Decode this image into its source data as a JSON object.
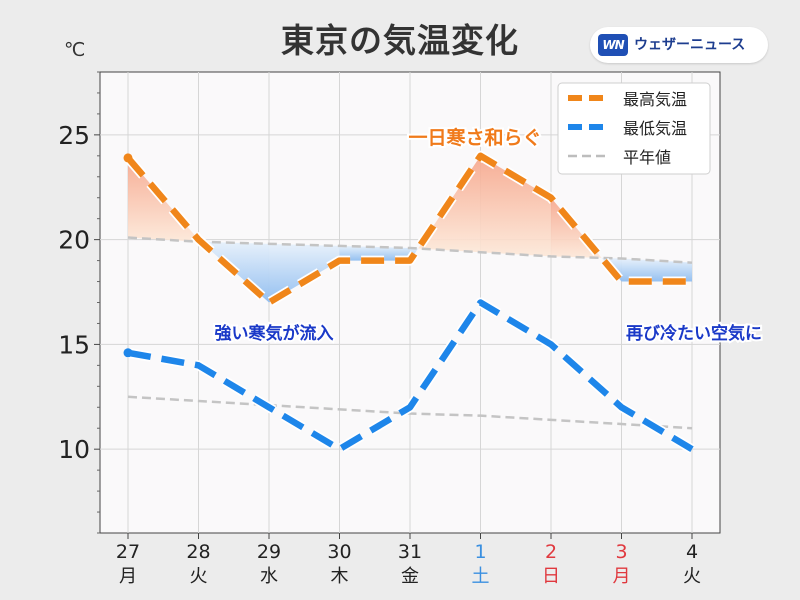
{
  "title": "東京の気温変化",
  "logo": {
    "mark": "WN",
    "text": "ウェザーニュース"
  },
  "colors": {
    "high": "#f0861a",
    "low": "#1e86ea",
    "normal": "#c4c4c4",
    "grid": "#d6d6d6",
    "plot_bg": "#faf9fa",
    "saturday": "#3a8fe0",
    "holiday": "#e0383e",
    "annotation_orange": "#f07a1a",
    "annotation_blue": "#1a39c8"
  },
  "chart_data": {
    "type": "line",
    "y_unit": "℃",
    "ylim": [
      6,
      28
    ],
    "yticks": [
      10,
      15,
      20,
      25
    ],
    "grid": true,
    "legend_position": "top-right",
    "categories": [
      {
        "day": "27",
        "weekday": "月",
        "color": "normal"
      },
      {
        "day": "28",
        "weekday": "火",
        "color": "normal"
      },
      {
        "day": "29",
        "weekday": "水",
        "color": "normal"
      },
      {
        "day": "30",
        "weekday": "木",
        "color": "normal"
      },
      {
        "day": "31",
        "weekday": "金",
        "color": "normal"
      },
      {
        "day": "1",
        "weekday": "土",
        "color": "saturday"
      },
      {
        "day": "2",
        "weekday": "日",
        "color": "holiday"
      },
      {
        "day": "3",
        "weekday": "月",
        "color": "holiday"
      },
      {
        "day": "4",
        "weekday": "火",
        "color": "normal"
      }
    ],
    "series": [
      {
        "key": "high",
        "name": "最高気温",
        "values": [
          23.9,
          20.0,
          17.0,
          19.0,
          19.0,
          24.0,
          22.0,
          18.0,
          18.0
        ]
      },
      {
        "key": "low",
        "name": "最低気温",
        "values": [
          14.6,
          14.0,
          12.0,
          10.0,
          12.0,
          17.0,
          15.0,
          12.0,
          10.0
        ]
      },
      {
        "key": "normal_high",
        "name": "平年値",
        "values": [
          20.1,
          19.9,
          19.8,
          19.7,
          19.6,
          19.4,
          19.2,
          19.1,
          18.9
        ]
      },
      {
        "key": "normal_low",
        "name": "",
        "values": [
          12.5,
          12.3,
          12.1,
          11.9,
          11.7,
          11.6,
          11.4,
          11.2,
          11.0
        ]
      }
    ],
    "annotations": [
      {
        "text": "一日寒さ和らぐ",
        "color": "annotation_orange"
      },
      {
        "text": "強い寒気が流入",
        "color": "annotation_blue"
      },
      {
        "text": "再び冷たい空気に",
        "color": "annotation_blue"
      }
    ]
  }
}
